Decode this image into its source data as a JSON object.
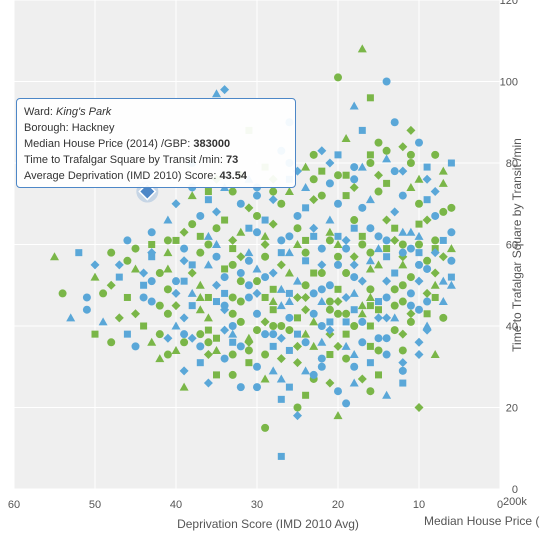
{
  "chart_data": {
    "type": "scatter",
    "title": "",
    "xlabel": "Deprivation Score (IMD 2010 Avg)",
    "ylabel": "Time to Trafalgar Square by Transit /min",
    "second_xlabel": "Median House Price (",
    "second_axis_ticks": "200k",
    "x_reversed": true,
    "xlim": [
      0,
      60
    ],
    "ylim": [
      0,
      120
    ],
    "xticks": [
      60,
      50,
      40,
      30,
      20,
      10,
      0
    ],
    "yticks": [
      0,
      20,
      40,
      60,
      80,
      100,
      120
    ],
    "grid": true,
    "background": "#efefef",
    "colors": [
      "#7ab648",
      "#1f4e8c",
      "#d7191c",
      "#f4a81d",
      "#2a8c6b",
      "#8e44ad",
      "#1a1a1a",
      "#5aa7d8",
      "#e84c8b",
      "#c6c61d",
      "#1fa39a",
      "#b22222",
      "#3b9ae1",
      "#f08a24"
    ],
    "marker_shapes": [
      "circle",
      "square",
      "triangle",
      "diamond"
    ],
    "highlight": {
      "x": 43.54,
      "y": 73,
      "color": "#4d87c7"
    },
    "points": [
      [
        46,
        56
      ],
      [
        44,
        53
      ],
      [
        41,
        58
      ],
      [
        38,
        55
      ],
      [
        36,
        60
      ],
      [
        34,
        52
      ],
      [
        32,
        57
      ],
      [
        30,
        54
      ],
      [
        28,
        49
      ],
      [
        26,
        62
      ],
      [
        24,
        58
      ],
      [
        22,
        55
      ],
      [
        20,
        60
      ],
      [
        18,
        64
      ],
      [
        16,
        58
      ],
      [
        14,
        61
      ],
      [
        12,
        57
      ],
      [
        10,
        62
      ],
      [
        8,
        59
      ],
      [
        6,
        56
      ],
      [
        42,
        45
      ],
      [
        40,
        48
      ],
      [
        37,
        44
      ],
      [
        35,
        46
      ],
      [
        33,
        43
      ],
      [
        31,
        47
      ],
      [
        29,
        41
      ],
      [
        27,
        45
      ],
      [
        25,
        42
      ],
      [
        23,
        48
      ],
      [
        21,
        44
      ],
      [
        19,
        47
      ],
      [
        17,
        43
      ],
      [
        15,
        46
      ],
      [
        13,
        49
      ],
      [
        11,
        45
      ],
      [
        9,
        48
      ],
      [
        7,
        51
      ],
      [
        44,
        40
      ],
      [
        39,
        38
      ],
      [
        36,
        36
      ],
      [
        34,
        39
      ],
      [
        31,
        37
      ],
      [
        28,
        35
      ],
      [
        26,
        39
      ],
      [
        24,
        36
      ],
      [
        21,
        38
      ],
      [
        19,
        35
      ],
      [
        16,
        40
      ],
      [
        14,
        37
      ],
      [
        11,
        41
      ],
      [
        9,
        39
      ],
      [
        40,
        34
      ],
      [
        37,
        31
      ],
      [
        33,
        33
      ],
      [
        30,
        30
      ],
      [
        27,
        32
      ],
      [
        24,
        29
      ],
      [
        21,
        33
      ],
      [
        18,
        30
      ],
      [
        15,
        34
      ],
      [
        12,
        31
      ],
      [
        29,
        27
      ],
      [
        26,
        25
      ],
      [
        23,
        27
      ],
      [
        20,
        24
      ],
      [
        17,
        27
      ],
      [
        14,
        23
      ],
      [
        35,
        28
      ],
      [
        32,
        25
      ],
      [
        38,
        65
      ],
      [
        35,
        68
      ],
      [
        32,
        63
      ],
      [
        29,
        66
      ],
      [
        27,
        70
      ],
      [
        25,
        67
      ],
      [
        23,
        71
      ],
      [
        21,
        66
      ],
      [
        19,
        72
      ],
      [
        17,
        69
      ],
      [
        15,
        73
      ],
      [
        13,
        68
      ],
      [
        11,
        74
      ],
      [
        9,
        71
      ],
      [
        7,
        68
      ],
      [
        30,
        72
      ],
      [
        28,
        76
      ],
      [
        24,
        74
      ],
      [
        22,
        78
      ],
      [
        18,
        76
      ],
      [
        16,
        80
      ],
      [
        12,
        78
      ],
      [
        10,
        76
      ],
      [
        20,
        82
      ],
      [
        14,
        83
      ],
      [
        26,
        80
      ],
      [
        31,
        69
      ],
      [
        36,
        62
      ],
      [
        40,
        61
      ],
      [
        43,
        63
      ],
      [
        45,
        59
      ],
      [
        47,
        55
      ],
      [
        50,
        52
      ],
      [
        52,
        58
      ],
      [
        54,
        48
      ],
      [
        51,
        44
      ],
      [
        48,
        50
      ],
      [
        49,
        41
      ],
      [
        46,
        47
      ],
      [
        43,
        51
      ],
      [
        42,
        38
      ],
      [
        39,
        42
      ],
      [
        37,
        50
      ],
      [
        34,
        48
      ],
      [
        32,
        51
      ],
      [
        29,
        52
      ],
      [
        27,
        55
      ],
      [
        25,
        51
      ],
      [
        23,
        53
      ],
      [
        21,
        50
      ],
      [
        19,
        53
      ],
      [
        17,
        51
      ],
      [
        15,
        55
      ],
      [
        13,
        53
      ],
      [
        11,
        52
      ],
      [
        9,
        54
      ],
      [
        7,
        57
      ],
      [
        6,
        50
      ],
      [
        8,
        47
      ],
      [
        10,
        44
      ],
      [
        12,
        46
      ],
      [
        14,
        42
      ],
      [
        16,
        47
      ],
      [
        18,
        44
      ],
      [
        20,
        43
      ],
      [
        22,
        40
      ],
      [
        24,
        44
      ],
      [
        26,
        46
      ],
      [
        28,
        44
      ],
      [
        30,
        43
      ],
      [
        32,
        41
      ],
      [
        34,
        44
      ],
      [
        36,
        42
      ],
      [
        38,
        45
      ],
      [
        41,
        43
      ],
      [
        44,
        47
      ],
      [
        47,
        42
      ],
      [
        53,
        42
      ],
      [
        50,
        38
      ],
      [
        45,
        35
      ],
      [
        41,
        33
      ],
      [
        38,
        37
      ],
      [
        35,
        34
      ],
      [
        33,
        36
      ],
      [
        31,
        34
      ],
      [
        28,
        38
      ],
      [
        25,
        35
      ],
      [
        22,
        36
      ],
      [
        19,
        38
      ],
      [
        17,
        36
      ],
      [
        13,
        39
      ],
      [
        10,
        36
      ],
      [
        8,
        33
      ],
      [
        16,
        31
      ],
      [
        19,
        32
      ],
      [
        22,
        30
      ],
      [
        25,
        31
      ],
      [
        28,
        29
      ],
      [
        31,
        31
      ],
      [
        34,
        32
      ],
      [
        37,
        38
      ],
      [
        39,
        29
      ],
      [
        42,
        32
      ],
      [
        27,
        22
      ],
      [
        25,
        20
      ],
      [
        23,
        28
      ],
      [
        21,
        26
      ],
      [
        18,
        26
      ],
      [
        15,
        28
      ],
      [
        12,
        29
      ],
      [
        29,
        15
      ],
      [
        25,
        18
      ],
      [
        20,
        18
      ],
      [
        27,
        8
      ],
      [
        28,
        40
      ],
      [
        26,
        42
      ],
      [
        24,
        47
      ],
      [
        22,
        46
      ],
      [
        20,
        49
      ],
      [
        18,
        52
      ],
      [
        16,
        49
      ],
      [
        14,
        51
      ],
      [
        12,
        55
      ],
      [
        10,
        58
      ],
      [
        8,
        61
      ],
      [
        6,
        63
      ],
      [
        9,
        66
      ],
      [
        11,
        63
      ],
      [
        13,
        64
      ],
      [
        15,
        62
      ],
      [
        17,
        60
      ],
      [
        19,
        61
      ],
      [
        21,
        63
      ],
      [
        23,
        62
      ],
      [
        25,
        64
      ],
      [
        27,
        61
      ],
      [
        29,
        60
      ],
      [
        31,
        58
      ],
      [
        33,
        59
      ],
      [
        35,
        57
      ],
      [
        37,
        58
      ],
      [
        39,
        56
      ],
      [
        41,
        54
      ],
      [
        43,
        57
      ],
      [
        33,
        55
      ],
      [
        30,
        63
      ],
      [
        28,
        65
      ],
      [
        26,
        58
      ],
      [
        24,
        61
      ],
      [
        22,
        59
      ],
      [
        20,
        57
      ],
      [
        18,
        55
      ],
      [
        16,
        54
      ],
      [
        14,
        57
      ],
      [
        12,
        60
      ],
      [
        10,
        55
      ],
      [
        8,
        53
      ],
      [
        7,
        46
      ],
      [
        9,
        43
      ],
      [
        11,
        48
      ],
      [
        13,
        45
      ],
      [
        15,
        42
      ],
      [
        17,
        45
      ],
      [
        19,
        41
      ],
      [
        21,
        46
      ],
      [
        23,
        43
      ],
      [
        25,
        47
      ],
      [
        27,
        49
      ],
      [
        29,
        47
      ],
      [
        31,
        50
      ],
      [
        33,
        47
      ],
      [
        35,
        50
      ],
      [
        37,
        47
      ],
      [
        39,
        51
      ],
      [
        41,
        49
      ],
      [
        43,
        46
      ],
      [
        45,
        43
      ],
      [
        40,
        40
      ],
      [
        36,
        39
      ],
      [
        33,
        40
      ],
      [
        30,
        39
      ],
      [
        27,
        37
      ],
      [
        24,
        38
      ],
      [
        21,
        41
      ],
      [
        18,
        40
      ],
      [
        15,
        37
      ],
      [
        12,
        38
      ],
      [
        9,
        40
      ],
      [
        34,
        66
      ],
      [
        32,
        70
      ],
      [
        30,
        67
      ],
      [
        28,
        71
      ],
      [
        26,
        73
      ],
      [
        24,
        69
      ],
      [
        22,
        72
      ],
      [
        20,
        70
      ],
      [
        18,
        74
      ],
      [
        16,
        71
      ],
      [
        14,
        75
      ],
      [
        12,
        72
      ],
      [
        10,
        70
      ],
      [
        8,
        73
      ],
      [
        7,
        78
      ],
      [
        9,
        79
      ],
      [
        11,
        80
      ],
      [
        13,
        78
      ],
      [
        15,
        77
      ],
      [
        17,
        79
      ],
      [
        19,
        77
      ],
      [
        21,
        75
      ],
      [
        23,
        76
      ],
      [
        25,
        78
      ],
      [
        19,
        86
      ],
      [
        17,
        88
      ],
      [
        15,
        85
      ],
      [
        13,
        90
      ],
      [
        11,
        88
      ],
      [
        18,
        94
      ],
      [
        16,
        96
      ],
      [
        14,
        100
      ],
      [
        20,
        101
      ],
      [
        34,
        98
      ],
      [
        17,
        108
      ],
      [
        20,
        62
      ],
      [
        18,
        66
      ],
      [
        16,
        64
      ],
      [
        14,
        66
      ],
      [
        12,
        63
      ],
      [
        10,
        65
      ],
      [
        8,
        67
      ],
      [
        6,
        69
      ],
      [
        40,
        70
      ],
      [
        38,
        72
      ],
      [
        36,
        71
      ],
      [
        33,
        73
      ],
      [
        38,
        80
      ],
      [
        35,
        76
      ],
      [
        31,
        76
      ],
      [
        29,
        79
      ],
      [
        27,
        83
      ],
      [
        23,
        82
      ],
      [
        21,
        80
      ],
      [
        29,
        62
      ],
      [
        31,
        64
      ],
      [
        35,
        64
      ],
      [
        37,
        67
      ],
      [
        39,
        63
      ],
      [
        41,
        66
      ],
      [
        43,
        60
      ],
      [
        46,
        61
      ],
      [
        48,
        58
      ],
      [
        50,
        55
      ],
      [
        55,
        57
      ],
      [
        44,
        50
      ],
      [
        42,
        53
      ],
      [
        40,
        51
      ],
      [
        38,
        53
      ],
      [
        36,
        55
      ],
      [
        34,
        54
      ],
      [
        32,
        53
      ],
      [
        30,
        51
      ],
      [
        28,
        53
      ],
      [
        26,
        53
      ],
      [
        24,
        56
      ],
      [
        22,
        53
      ],
      [
        20,
        55
      ],
      [
        18,
        57
      ],
      [
        16,
        56
      ],
      [
        14,
        59
      ],
      [
        12,
        58
      ],
      [
        10,
        60
      ],
      [
        8,
        58
      ],
      [
        6,
        59
      ],
      [
        7,
        61
      ],
      [
        9,
        56
      ],
      [
        11,
        59
      ],
      [
        13,
        61
      ],
      [
        15,
        59
      ],
      [
        17,
        62
      ],
      [
        19,
        59
      ],
      [
        21,
        61
      ],
      [
        23,
        64
      ],
      [
        25,
        60
      ],
      [
        27,
        58
      ],
      [
        29,
        57
      ],
      [
        31,
        56
      ],
      [
        33,
        61
      ],
      [
        35,
        60
      ],
      [
        37,
        62
      ],
      [
        39,
        59
      ],
      [
        41,
        61
      ],
      [
        43,
        58
      ],
      [
        45,
        54
      ],
      [
        47,
        52
      ],
      [
        49,
        48
      ],
      [
        51,
        47
      ],
      [
        40,
        45
      ],
      [
        38,
        48
      ],
      [
        36,
        47
      ],
      [
        34,
        45
      ],
      [
        32,
        46
      ],
      [
        30,
        48
      ],
      [
        28,
        46
      ],
      [
        26,
        48
      ],
      [
        24,
        50
      ],
      [
        22,
        49
      ],
      [
        20,
        46
      ],
      [
        18,
        48
      ],
      [
        16,
        45
      ],
      [
        14,
        47
      ],
      [
        12,
        50
      ],
      [
        10,
        51
      ],
      [
        8,
        50
      ],
      [
        6,
        52
      ],
      [
        7,
        42
      ],
      [
        9,
        46
      ],
      [
        11,
        43
      ],
      [
        13,
        42
      ],
      [
        15,
        44
      ],
      [
        17,
        41
      ],
      [
        19,
        43
      ],
      [
        21,
        39
      ],
      [
        23,
        41
      ],
      [
        25,
        38
      ],
      [
        27,
        40
      ],
      [
        29,
        38
      ],
      [
        31,
        36
      ],
      [
        33,
        38
      ],
      [
        35,
        37
      ],
      [
        37,
        35
      ],
      [
        39,
        36
      ],
      [
        41,
        37
      ],
      [
        43,
        36
      ],
      [
        46,
        38
      ],
      [
        48,
        36
      ],
      [
        22,
        32
      ],
      [
        20,
        35
      ],
      [
        18,
        33
      ],
      [
        16,
        35
      ],
      [
        14,
        33
      ],
      [
        12,
        34
      ],
      [
        10,
        33
      ],
      [
        23,
        35
      ],
      [
        26,
        34
      ],
      [
        29,
        33
      ],
      [
        32,
        35
      ],
      [
        36,
        33
      ],
      [
        27,
        27
      ],
      [
        24,
        23
      ],
      [
        30,
        25
      ],
      [
        33,
        28
      ],
      [
        36,
        26
      ],
      [
        39,
        25
      ],
      [
        12,
        26
      ],
      [
        16,
        24
      ],
      [
        19,
        21
      ],
      [
        10,
        20
      ],
      [
        35,
        97
      ],
      [
        31,
        88
      ],
      [
        26,
        90
      ],
      [
        11,
        82
      ],
      [
        9,
        76
      ],
      [
        7,
        75
      ],
      [
        6,
        80
      ],
      [
        8,
        82
      ],
      [
        10,
        85
      ],
      [
        12,
        84
      ],
      [
        14,
        81
      ],
      [
        16,
        82
      ],
      [
        18,
        79
      ],
      [
        20,
        77
      ],
      [
        22,
        83
      ],
      [
        24,
        79
      ],
      [
        26,
        76
      ],
      [
        28,
        73
      ],
      [
        30,
        74
      ],
      [
        32,
        77
      ],
      [
        34,
        74
      ],
      [
        36,
        73
      ],
      [
        38,
        74
      ]
    ]
  }
}
